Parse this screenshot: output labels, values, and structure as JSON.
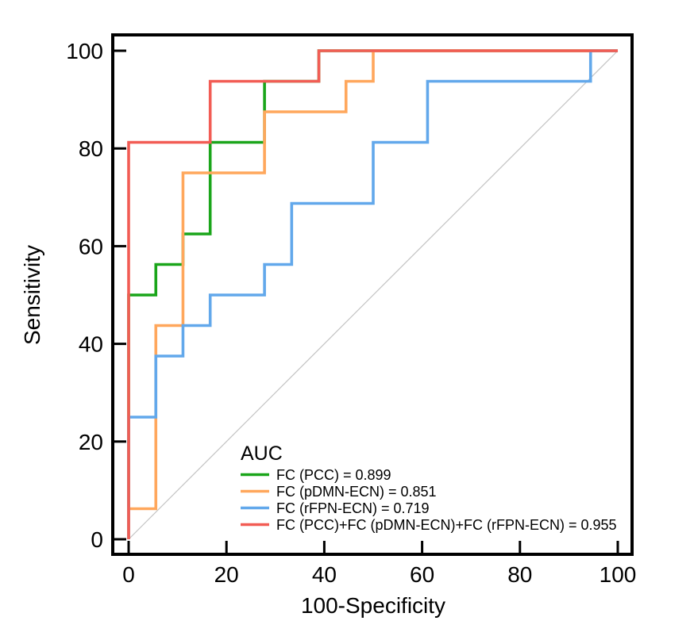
{
  "chart_data": {
    "type": "line",
    "subtype": "roc-step-curves",
    "title": "",
    "xlabel": "100-Specificity",
    "ylabel": "Sensitivity",
    "xlim": [
      0,
      100
    ],
    "ylim": [
      0,
      100
    ],
    "x_ticks": [
      0,
      20,
      40,
      60,
      80,
      100
    ],
    "y_ticks": [
      0,
      20,
      40,
      60,
      80,
      100
    ],
    "grid": false,
    "legend_position": "inside-lower-right",
    "legend_title": "AUC",
    "reference_line": {
      "name": "chance-diagonal",
      "from": [
        0,
        0
      ],
      "to": [
        100,
        100
      ],
      "color": "#c3c3c3"
    },
    "frame_color": "#000000",
    "series": [
      {
        "name": "FC (PCC)",
        "auc": "0.899",
        "legend_label": "FC (PCC) = 0.899",
        "color": "#1aa51a",
        "points": [
          [
            0,
            0
          ],
          [
            0,
            50
          ],
          [
            5.56,
            50
          ],
          [
            5.56,
            56.25
          ],
          [
            11.11,
            56.25
          ],
          [
            11.11,
            62.5
          ],
          [
            16.67,
            62.5
          ],
          [
            16.67,
            81.25
          ],
          [
            27.78,
            81.25
          ],
          [
            27.78,
            93.75
          ],
          [
            38.89,
            93.75
          ],
          [
            38.89,
            100
          ],
          [
            100,
            100
          ]
        ]
      },
      {
        "name": "FC (pDMN-ECN)",
        "auc": "0.851",
        "legend_label": "FC (pDMN-ECN) = 0.851",
        "color": "#ffa75c",
        "points": [
          [
            0,
            0
          ],
          [
            0,
            6.25
          ],
          [
            5.56,
            6.25
          ],
          [
            5.56,
            43.75
          ],
          [
            11.11,
            43.75
          ],
          [
            11.11,
            75
          ],
          [
            27.78,
            75
          ],
          [
            27.78,
            87.5
          ],
          [
            44.44,
            87.5
          ],
          [
            44.44,
            93.75
          ],
          [
            50,
            93.75
          ],
          [
            50,
            100
          ],
          [
            100,
            100
          ]
        ]
      },
      {
        "name": "FC (rFPN-ECN)",
        "auc": "0.719",
        "legend_label": "FC (rFPN-ECN) = 0.719",
        "color": "#62a8eb",
        "points": [
          [
            0,
            0
          ],
          [
            0,
            25
          ],
          [
            5.56,
            25
          ],
          [
            5.56,
            37.5
          ],
          [
            11.11,
            37.5
          ],
          [
            11.11,
            43.75
          ],
          [
            16.67,
            43.75
          ],
          [
            16.67,
            50
          ],
          [
            27.78,
            50
          ],
          [
            27.78,
            56.25
          ],
          [
            33.33,
            56.25
          ],
          [
            33.33,
            68.75
          ],
          [
            50,
            68.75
          ],
          [
            50,
            81.25
          ],
          [
            61.11,
            81.25
          ],
          [
            61.11,
            93.75
          ],
          [
            94.44,
            93.75
          ],
          [
            94.44,
            100
          ],
          [
            100,
            100
          ]
        ]
      },
      {
        "name": "FC (PCC)+FC (pDMN-ECN)+FC (rFPN-ECN)",
        "auc": "0.955",
        "legend_label": "FC (PCC)+FC (pDMN-ECN)+FC (rFPN-ECN) = 0.955",
        "color": "#f25c54",
        "points": [
          [
            0,
            0
          ],
          [
            0,
            81.25
          ],
          [
            16.67,
            81.25
          ],
          [
            16.67,
            93.75
          ],
          [
            38.89,
            93.75
          ],
          [
            38.89,
            100
          ],
          [
            100,
            100
          ]
        ]
      }
    ]
  }
}
